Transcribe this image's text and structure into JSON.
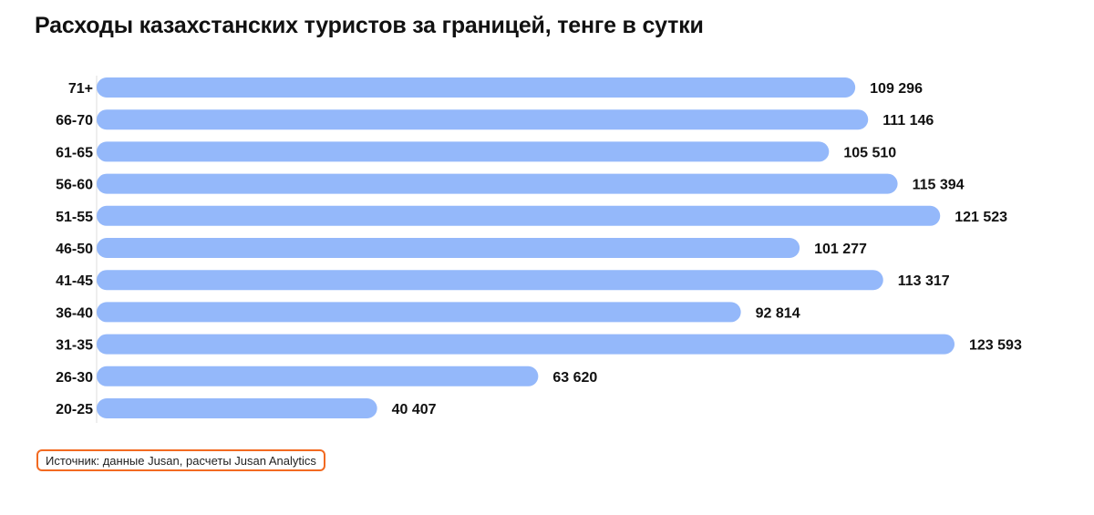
{
  "title": "Расходы казахстанских туристов за границей, тенге в сутки",
  "source": "Источник: данные Jusan, расчеты Jusan Analytics",
  "colors": {
    "bar": "#94b8fa",
    "axis": "#dddddd",
    "source_border": "#f26a21"
  },
  "chart_data": {
    "type": "bar",
    "orientation": "horizontal",
    "title": "Расходы казахстанских туристов за границей, тенге в сутки",
    "categories": [
      "71+",
      "66-70",
      "61-65",
      "56-60",
      "51-55",
      "46-50",
      "41-45",
      "36-40",
      "31-35",
      "26-30",
      "20-25"
    ],
    "values": [
      109296,
      111146,
      105510,
      115394,
      121523,
      101277,
      113317,
      92814,
      123593,
      63620,
      40407
    ],
    "value_labels": [
      "109 296",
      "111 146",
      "105 510",
      "115 394",
      "121 523",
      "101 277",
      "113 317",
      "92 814",
      "123 593",
      "63 620",
      "40 407"
    ],
    "xlim": [
      0,
      123593
    ],
    "grid": false,
    "legend": "none"
  }
}
